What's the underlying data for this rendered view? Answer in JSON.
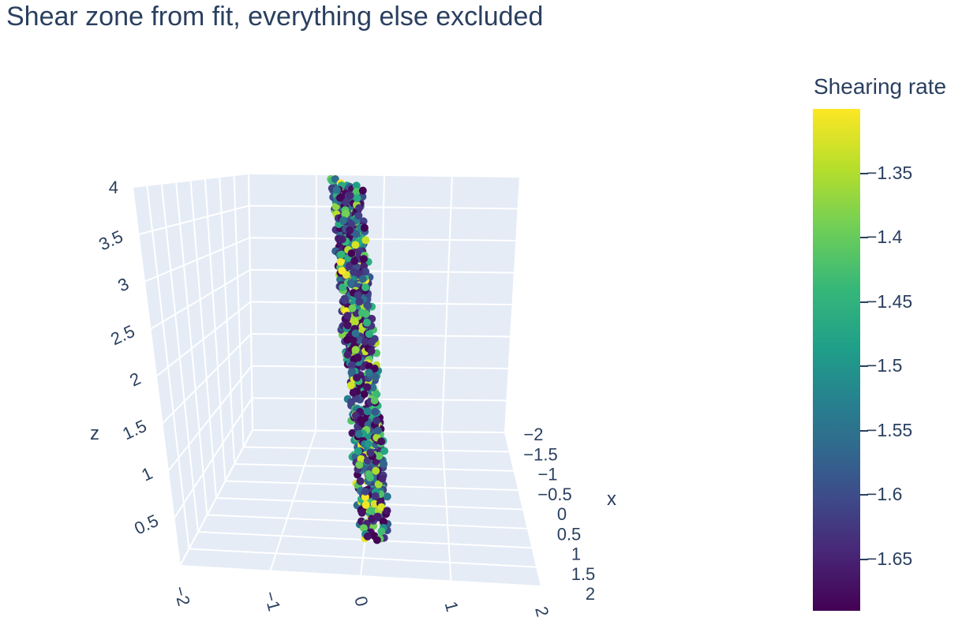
{
  "chart_data": {
    "type": "scatter3d",
    "title": "Shear zone from fit, everything else excluded",
    "xlabel": "x",
    "ylabel": "",
    "zlabel": "z",
    "x_ticks": [
      "−2",
      "−1.5",
      "−1",
      "−0.5",
      "0",
      "0.5",
      "1",
      "1.5",
      "2"
    ],
    "y_ticks": [
      "−2",
      "−1",
      "0",
      "1",
      "2"
    ],
    "z_ticks": [
      "0.5",
      "1",
      "1.5",
      "2",
      "2.5",
      "3",
      "3.5",
      "4"
    ],
    "xlim": [
      -2,
      2
    ],
    "ylim": [
      -2,
      2
    ],
    "zlim": [
      0,
      4
    ],
    "colorscale": "Viridis",
    "colorbar": {
      "title": "Shearing rate",
      "ticks": [
        "−1.35",
        "−1.4",
        "−1.45",
        "−1.5",
        "−1.55",
        "−1.6",
        "−1.65"
      ],
      "tick_values": [
        -1.35,
        -1.4,
        -1.45,
        -1.5,
        -1.55,
        -1.6,
        -1.65
      ],
      "range": [
        -1.69,
        -1.3
      ]
    },
    "n_points": 900,
    "shear_band_y": [
      0.05,
      0.35
    ],
    "shear_band_x": [
      -2,
      2
    ],
    "point_z_range": [
      0.4,
      4.0
    ]
  },
  "colors": {
    "scene_bg": "#e5ecf6",
    "grid": "#ffffff",
    "text": "#2a3f5f"
  }
}
